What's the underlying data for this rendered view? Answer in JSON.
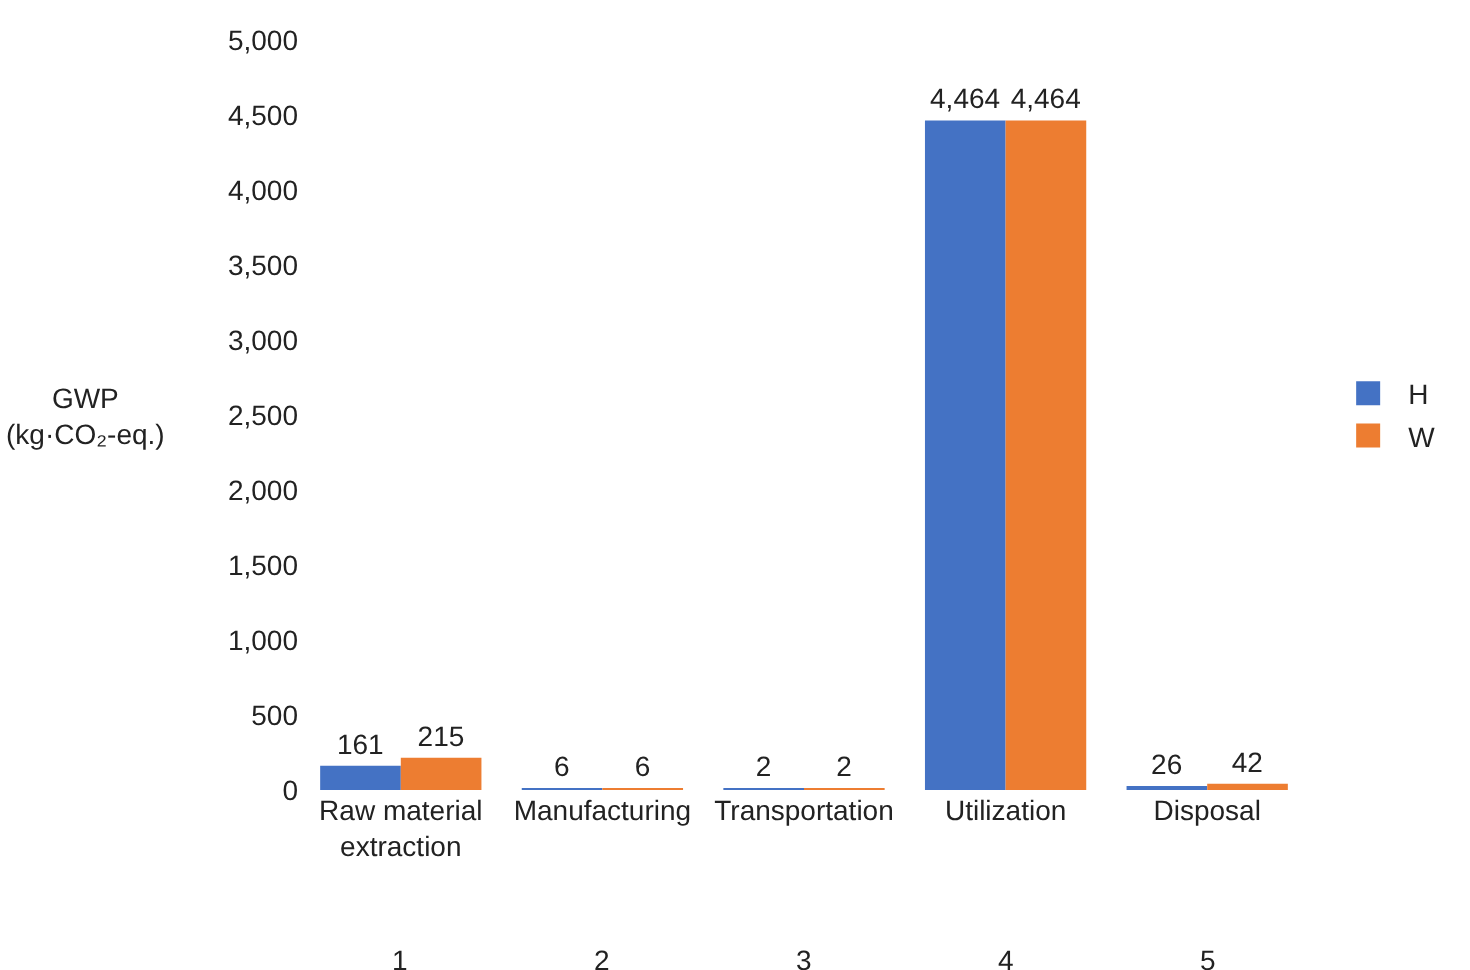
{
  "chart_data": {
    "type": "bar",
    "ylabel": "GWP\n(kg·CO₂-eq.)",
    "categories": [
      "Raw material extraction",
      "Manufacturing",
      "Transportation",
      "Utilization",
      "Disposal"
    ],
    "series": [
      {
        "name": "H",
        "color": "#4472c4",
        "values": [
          161,
          6,
          2,
          4464,
          26
        ],
        "value_labels": [
          "161",
          "6",
          "2",
          "4,464",
          "26"
        ]
      },
      {
        "name": "W",
        "color": "#ed7d31",
        "values": [
          215,
          6,
          2,
          4464,
          42
        ],
        "value_labels": [
          "215",
          "6",
          "2",
          "4,464",
          "42"
        ]
      }
    ],
    "annotations": [
      "1",
      "2",
      "3",
      "4",
      "5"
    ],
    "ylim": [
      0,
      5000
    ],
    "yticks": [
      {
        "value": 0,
        "label": "0"
      },
      {
        "value": 500,
        "label": "500"
      },
      {
        "value": 1000,
        "label": "1,000"
      },
      {
        "value": 1500,
        "label": "1,500"
      },
      {
        "value": 2000,
        "label": "2,000"
      },
      {
        "value": 2500,
        "label": "2,500"
      },
      {
        "value": 3000,
        "label": "3,000"
      },
      {
        "value": 3500,
        "label": "3,500"
      },
      {
        "value": 4000,
        "label": "4,000"
      },
      {
        "value": 4500,
        "label": "4,500"
      },
      {
        "value": 5000,
        "label": "5,000"
      }
    ],
    "grid": false,
    "legend": "right"
  }
}
